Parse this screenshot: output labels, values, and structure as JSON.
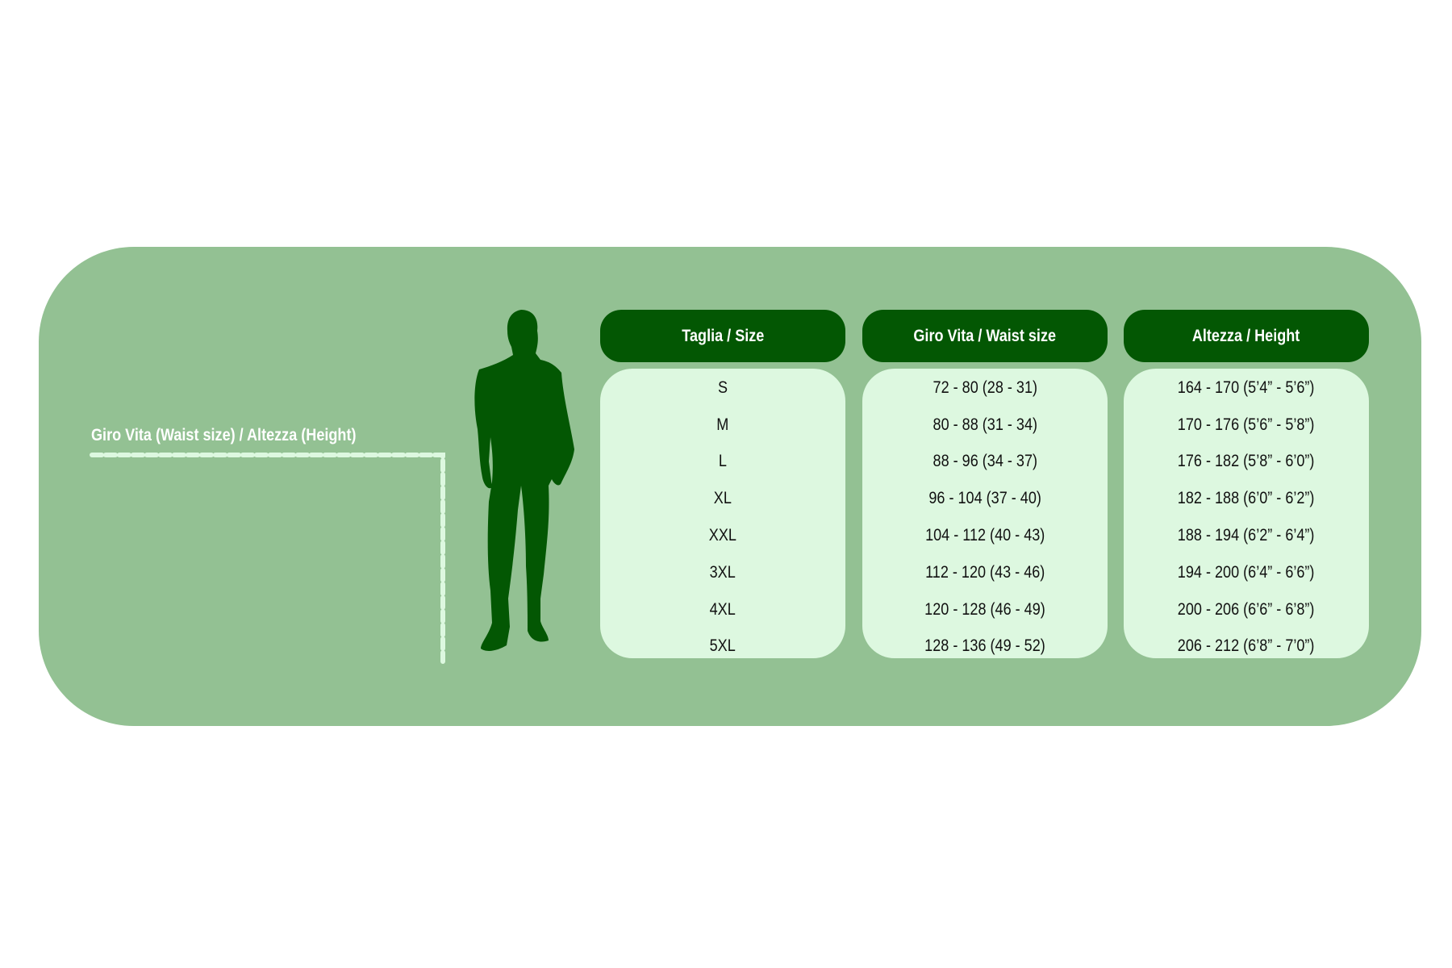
{
  "colors": {
    "panel": "#93c193",
    "header": "#035703",
    "cell_bg": "#ddf8e0"
  },
  "measure_label": "Giro Vita  (Waist size) / Altezza (Height)",
  "figure_icon": "man-silhouette-icon",
  "table": {
    "headers": [
      "Taglia / Size",
      "Giro Vita / Waist size",
      "Altezza / Height"
    ],
    "sizes": [
      "S",
      "M",
      "L",
      "XL",
      "XXL",
      "3XL",
      "4XL",
      "5XL"
    ],
    "waist": [
      "72 - 80 (28 - 31)",
      "80 - 88 (31 - 34)",
      "88 - 96 (34 - 37)",
      "96 - 104 (37 - 40)",
      "104 - 112 (40 - 43)",
      "112 - 120 (43 - 46)",
      "120 - 128 (46 - 49)",
      "128 - 136 (49 - 52)"
    ],
    "height": [
      "164 - 170 (5’4” - 5’6”)",
      "170 - 176 (5’6” - 5’8”)",
      "176 - 182 (5’8” - 6’0”)",
      "182 - 188 (6’0” - 6’2”)",
      "188 - 194 (6’2” - 6’4”)",
      "194 - 200 (6’4” - 6’6”)",
      "200 - 206 (6’6” - 6’8”)",
      "206 - 212 (6’8” - 7’0”)"
    ]
  }
}
